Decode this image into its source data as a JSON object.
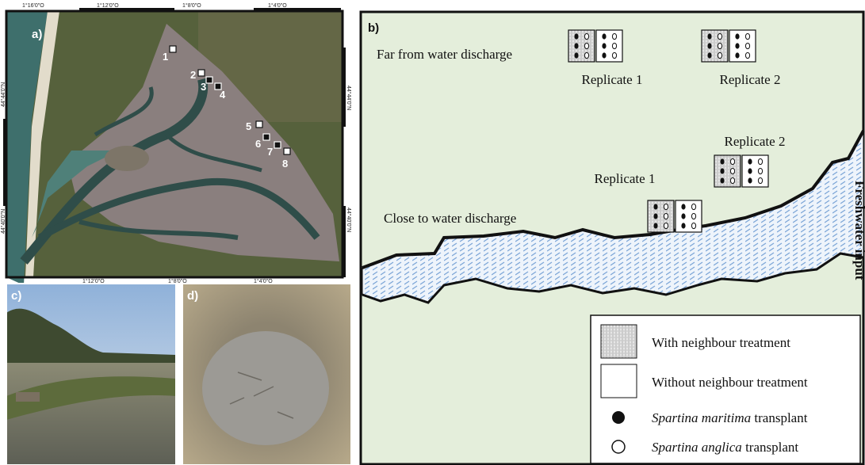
{
  "map": {
    "label": "a)",
    "top_ticks": [
      "1°16'0\"O",
      "1°12'0\"O",
      "1°8'0\"O",
      "1°4'0\"O"
    ],
    "bottom_ticks": [
      "1°12'0\"O",
      "1°8'0\"O",
      "1°4'0\"O"
    ],
    "left_ticks": [
      "44°44'0\"N",
      "44°40'0\"N"
    ],
    "right_ticks": [
      "44°44'0\"N",
      "44°40'0\"N"
    ],
    "sites": [
      "1",
      "2",
      "3",
      "4",
      "5",
      "6",
      "7",
      "8"
    ]
  },
  "photo_c": {
    "label": "c)"
  },
  "photo_d": {
    "label": "d)"
  },
  "diagram": {
    "label": "b)",
    "groups": [
      {
        "name": "Far from water discharge",
        "replicates": [
          "Replicate 1",
          "Replicate 2"
        ]
      },
      {
        "name": "Close to water discharge",
        "replicates": [
          "Replicate 1",
          "Replicate 2"
        ]
      }
    ],
    "stream_label": "Freshwater input",
    "legend": [
      {
        "text": "With neighbour treatment"
      },
      {
        "text": "Without neighbour treatment"
      },
      {
        "species": "Spartina maritima",
        "text": "transplant"
      },
      {
        "species": "Spartina anglica",
        "text": "transplant"
      }
    ]
  }
}
